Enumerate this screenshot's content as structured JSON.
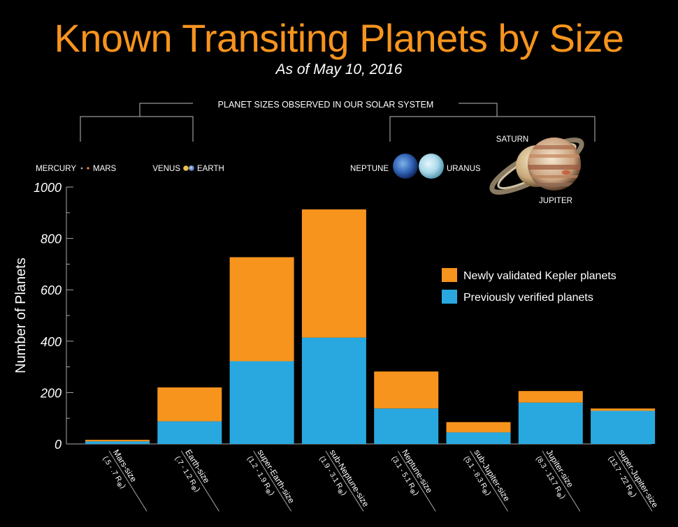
{
  "header": {
    "title": "Known Transiting Planets by Size",
    "subtitle": "As of May 10, 2016"
  },
  "solar_system": {
    "heading": "PLANET SIZES OBSERVED IN OUR SOLAR SYSTEM",
    "mercury": "MERCURY",
    "mars": "MARS",
    "venus": "VENUS",
    "earth": "EARTH",
    "neptune": "NEPTUNE",
    "uranus": "URANUS",
    "saturn": "SATURN",
    "jupiter": "JUPITER"
  },
  "legend": {
    "new_label": "Newly validated Kepler planets",
    "prev_label": "Previously verified planets",
    "new_color": "#f7941d",
    "prev_color": "#29a8e0"
  },
  "chart_data": {
    "type": "bar",
    "stacked": true,
    "ylabel": "Number of Planets",
    "ylim": [
      0,
      1000
    ],
    "yticks": [
      0,
      200,
      400,
      600,
      800,
      1000
    ],
    "categories": [
      {
        "name": "Mars-size",
        "range": "(.5 - .7 R",
        "sub": "⊕",
        "close": ")"
      },
      {
        "name": "Earth-size",
        "range": "(.7 - 1.2 R",
        "sub": "⊕",
        "close": ")"
      },
      {
        "name": "super-Earth-size",
        "range": "(1.2 - 1.9 R",
        "sub": "⊕",
        "close": ")"
      },
      {
        "name": "sub-Neptune-size",
        "range": "(1.9 - 3.1 R",
        "sub": "⊕",
        "close": ")"
      },
      {
        "name": "Neptune-size",
        "range": "(3.1 - 5.1 R",
        "sub": "⊕",
        "close": ")"
      },
      {
        "name": "sub-Jupiter-size",
        "range": "(5.1 - 8.3 R",
        "sub": "⊕",
        "close": ")"
      },
      {
        "name": "Jupiter-size",
        "range": "(8.3 - 13.7 R",
        "sub": "⊕",
        "close": ")"
      },
      {
        "name": "super-Jupiter-size",
        "range": "(13.7 - 22 R",
        "sub": "⊕",
        "close": ")"
      }
    ],
    "series": [
      {
        "name": "Previously verified planets",
        "color": "#29a8e0",
        "values": [
          10,
          88,
          322,
          414,
          138,
          45,
          161,
          129
        ]
      },
      {
        "name": "Newly validated Kepler planets",
        "color": "#f7941d",
        "values": [
          6,
          132,
          405,
          499,
          144,
          40,
          45,
          9
        ]
      }
    ]
  }
}
